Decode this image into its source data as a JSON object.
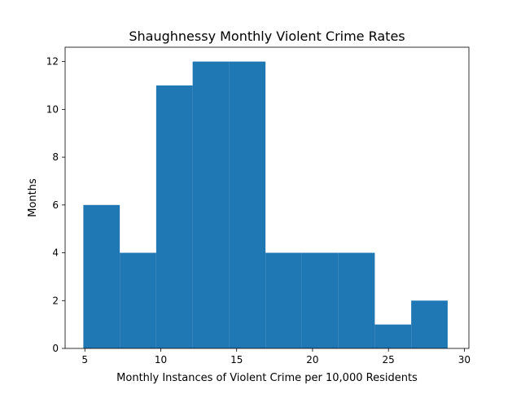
{
  "chart_data": {
    "type": "histogram",
    "title": "Shaughnessy Monthly Violent Crime Rates",
    "xlabel": "Monthly Instances of Violent Crime per 10,000 Residents",
    "ylabel": "Months",
    "bar_color": "#1f77b4",
    "xlim": [
      3.7,
      30.3
    ],
    "ylim": [
      0,
      12.6
    ],
    "x_ticks": [
      5,
      10,
      15,
      20,
      25,
      30
    ],
    "y_ticks": [
      0,
      2,
      4,
      6,
      8,
      10,
      12
    ],
    "bins": [
      {
        "start": 4.9,
        "end": 7.3,
        "count": 6
      },
      {
        "start": 7.3,
        "end": 9.7,
        "count": 4
      },
      {
        "start": 9.7,
        "end": 12.1,
        "count": 11
      },
      {
        "start": 12.1,
        "end": 14.5,
        "count": 12
      },
      {
        "start": 14.5,
        "end": 16.9,
        "count": 12
      },
      {
        "start": 16.9,
        "end": 19.3,
        "count": 4
      },
      {
        "start": 19.3,
        "end": 21.7,
        "count": 4
      },
      {
        "start": 21.7,
        "end": 24.1,
        "count": 4
      },
      {
        "start": 24.1,
        "end": 26.5,
        "count": 1
      },
      {
        "start": 26.5,
        "end": 28.9,
        "count": 2
      }
    ],
    "grid": false,
    "legend": "none"
  }
}
